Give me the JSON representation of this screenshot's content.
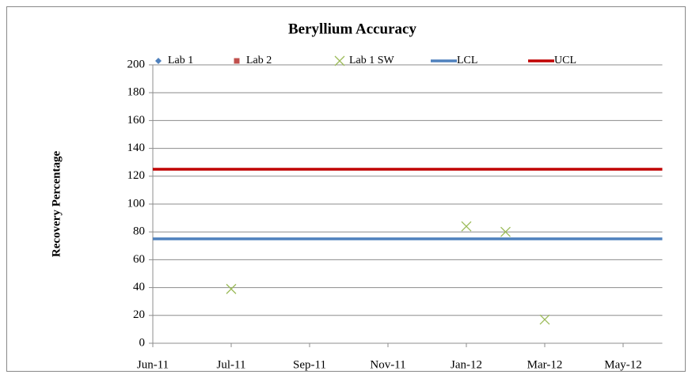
{
  "chart_data": {
    "type": "line",
    "title": "Beryllium Accuracy",
    "y_label": "Recovery Percentage",
    "xlim": [
      "2011-06",
      "2012-06"
    ],
    "xticks": [
      {
        "value": "2011-06",
        "label": "Jun-11"
      },
      {
        "value": "2011-07",
        "label": "Jul-11"
      },
      {
        "value": "2011-09",
        "label": "Sep-11"
      },
      {
        "value": "2011-11",
        "label": "Nov-11"
      },
      {
        "value": "2012-01",
        "label": "Jan-12"
      },
      {
        "value": "2012-03",
        "label": "Mar-12"
      },
      {
        "value": "2012-05",
        "label": "May-12"
      }
    ],
    "ylim": [
      0,
      200
    ],
    "yticks": [
      0,
      20,
      40,
      60,
      80,
      100,
      120,
      140,
      160,
      180,
      200
    ],
    "grid": true,
    "legend": "top",
    "series": [
      {
        "name": "Lab 1",
        "color": "#4f81bd",
        "marker": "diamond",
        "x": [],
        "values": []
      },
      {
        "name": "Lab 2",
        "color": "#c0504d",
        "marker": "square",
        "x": [],
        "values": []
      },
      {
        "name": "Lab 1 SW",
        "color": "#9bbb59",
        "marker": "x",
        "x": [
          "2011-07",
          "2012-01",
          "2012-02",
          "2012-03"
        ],
        "values": [
          39,
          84,
          80,
          17
        ]
      },
      {
        "name": "LCL",
        "color": "#4f81bd",
        "marker": "none",
        "x": [
          "2011-06",
          "2012-06"
        ],
        "values": [
          75,
          75
        ]
      },
      {
        "name": "UCL",
        "color": "#c00000",
        "marker": "none",
        "x": [
          "2011-06",
          "2012-06"
        ],
        "values": [
          125,
          125
        ]
      }
    ]
  }
}
